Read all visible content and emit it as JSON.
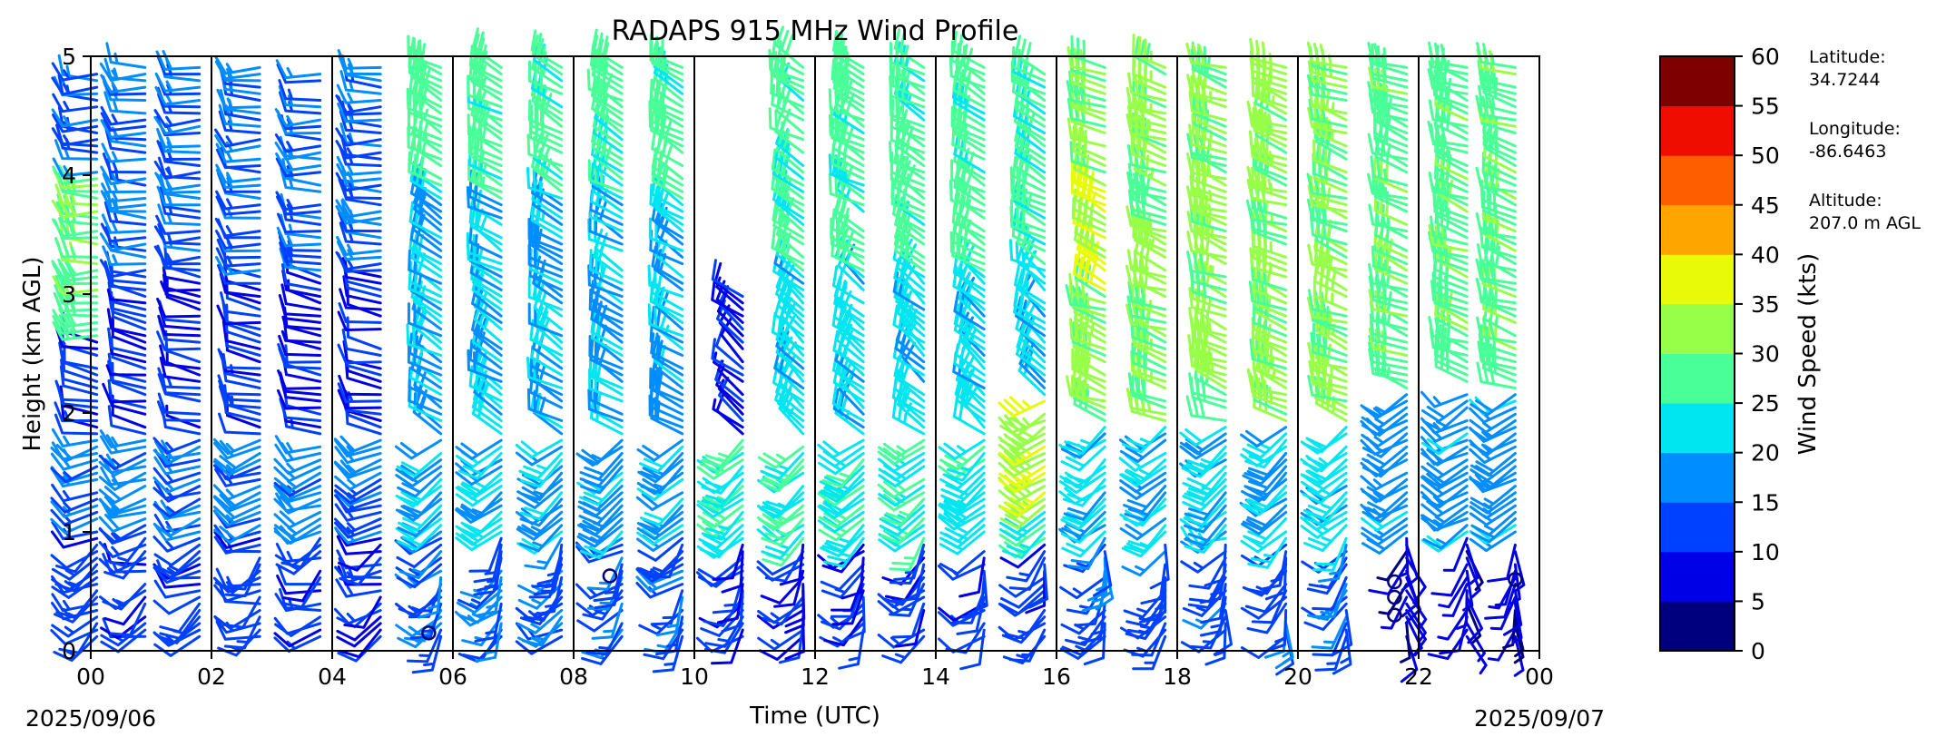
{
  "chart_data": {
    "type": "wind-barb-profile",
    "title": "RADAPS 915 MHz Wind Profile",
    "xlabel": "Time (UTC)",
    "ylabel": "Height (km AGL)",
    "x_ticks": [
      "00",
      "02",
      "04",
      "06",
      "08",
      "10",
      "12",
      "14",
      "16",
      "18",
      "20",
      "22",
      "00"
    ],
    "x_range_hours": [
      0,
      24
    ],
    "y_ticks": [
      "0",
      "1",
      "2",
      "3",
      "4",
      "5"
    ],
    "y_range_km": [
      0,
      5
    ],
    "start_date": "2025/09/06",
    "end_date": "2025/09/07",
    "vertical_gridlines_hours": [
      2,
      4,
      6,
      8,
      10,
      12,
      14,
      16,
      18,
      20,
      22
    ],
    "colorbar": {
      "label": "Wind Speed (kts)",
      "ticks": [
        "0",
        "5",
        "10",
        "15",
        "20",
        "25",
        "30",
        "35",
        "40",
        "45",
        "50",
        "55",
        "60"
      ],
      "range": [
        0,
        60
      ],
      "colors": [
        "#00007f",
        "#0000e6",
        "#0041ff",
        "#008dff",
        "#00e6f0",
        "#49ff98",
        "#98ff49",
        "#e8fa07",
        "#ffa500",
        "#ff5e00",
        "#ef0d00",
        "#7f0000"
      ]
    },
    "site": {
      "latitude_label": "Latitude:",
      "latitude": "34.7244",
      "longitude_label": "Longitude:",
      "longitude": "-86.6463",
      "altitude_label": "Altitude:",
      "altitude": "207.0 m AGL"
    },
    "profile_times_hours": [
      0.1,
      0.9,
      1.8,
      2.8,
      3.8,
      4.8,
      5.8,
      6.8,
      7.8,
      8.8,
      9.8,
      10.8,
      11.8,
      12.8,
      13.8,
      14.8,
      15.8,
      16.8,
      17.8,
      18.8,
      19.8,
      20.8,
      21.8,
      22.8,
      23.6
    ],
    "layers": [
      {
        "hours": [
          0,
          5.5
        ],
        "km": [
          0,
          1.0
        ],
        "speed": 12,
        "dir": 240
      },
      {
        "hours": [
          0,
          5.5
        ],
        "km": [
          1.0,
          1.8
        ],
        "speed": 16,
        "dir": 250
      },
      {
        "hours": [
          0,
          5.5
        ],
        "km": [
          1.8,
          3.2
        ],
        "speed": 10,
        "dir": 280
      },
      {
        "hours": [
          0,
          5.5
        ],
        "km": [
          3.2,
          5.0
        ],
        "speed": 15,
        "dir": 270
      },
      {
        "hours": [
          0,
          0.5
        ],
        "km": [
          2.6,
          4.0
        ],
        "speed": 29,
        "dir": 270
      },
      {
        "hours": [
          5.5,
          10.5
        ],
        "km": [
          0,
          1.0
        ],
        "speed": 14,
        "dir": 220
      },
      {
        "hours": [
          5.5,
          10.5
        ],
        "km": [
          1.0,
          1.8
        ],
        "speed": 20,
        "dir": 230
      },
      {
        "hours": [
          5.5,
          10.5
        ],
        "km": [
          1.8,
          3.8
        ],
        "speed": 20,
        "dir": 300
      },
      {
        "hours": [
          5.5,
          10.5
        ],
        "km": [
          3.8,
          5.0
        ],
        "speed": 27,
        "dir": 300
      },
      {
        "hours": [
          10.5,
          16.5
        ],
        "km": [
          0,
          0.9
        ],
        "speed": 11,
        "dir": 210
      },
      {
        "hours": [
          10.5,
          16.5
        ],
        "km": [
          0.9,
          1.8
        ],
        "speed": 24,
        "dir": 230
      },
      {
        "hours": [
          10.5,
          11.5
        ],
        "km": [
          1.8,
          3.0
        ],
        "speed": 9,
        "dir": 310
      },
      {
        "hours": [
          11.5,
          16.5
        ],
        "km": [
          1.8,
          3.2
        ],
        "speed": 22,
        "dir": 310
      },
      {
        "hours": [
          11.5,
          16.5
        ],
        "km": [
          3.2,
          5.0
        ],
        "speed": 27,
        "dir": 300
      },
      {
        "hours": [
          15.5,
          16.5
        ],
        "km": [
          1.2,
          2.1
        ],
        "speed": 33,
        "dir": 240
      },
      {
        "hours": [
          16.5,
          21.0
        ],
        "km": [
          0,
          0.9
        ],
        "speed": 13,
        "dir": 200
      },
      {
        "hours": [
          16.5,
          21.0
        ],
        "km": [
          0.9,
          1.9
        ],
        "speed": 21,
        "dir": 230
      },
      {
        "hours": [
          16.5,
          21.0
        ],
        "km": [
          1.9,
          5.0
        ],
        "speed": 31,
        "dir": 290
      },
      {
        "hours": [
          16.5,
          17.5
        ],
        "km": [
          3.0,
          3.9
        ],
        "speed": 36,
        "dir": 300
      },
      {
        "hours": [
          21.0,
          24.0
        ],
        "km": [
          0,
          1.0
        ],
        "speed": 7,
        "dir": 180
      },
      {
        "hours": [
          21.0,
          24.0
        ],
        "km": [
          1.0,
          2.2
        ],
        "speed": 18,
        "dir": 240
      },
      {
        "hours": [
          21.0,
          24.0
        ],
        "km": [
          2.2,
          5.0
        ],
        "speed": 28,
        "dir": 290
      }
    ],
    "calm_circles": [
      {
        "hour": 5.6,
        "km": 0.15
      },
      {
        "hour": 8.6,
        "km": 0.63
      },
      {
        "hour": 21.6,
        "km": 0.3
      },
      {
        "hour": 21.6,
        "km": 0.45
      },
      {
        "hour": 21.6,
        "km": 0.58
      },
      {
        "hour": 23.6,
        "km": 0.6
      }
    ]
  }
}
